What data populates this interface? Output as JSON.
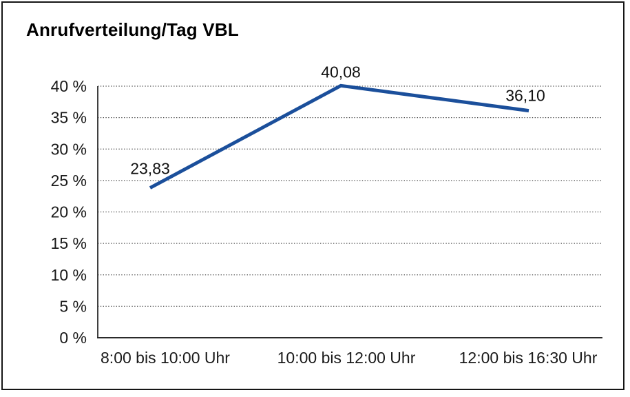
{
  "chart_data": {
    "type": "line",
    "title": "Anrufverteilung/Tag VBL",
    "categories": [
      "8:00 bis 10:00 Uhr",
      "10:00 bis 12:00 Uhr",
      "12:00 bis 16:30 Uhr"
    ],
    "values": [
      23.83,
      40.08,
      36.1
    ],
    "value_labels": [
      "23,83",
      "40,08",
      "36,10"
    ],
    "series_name": "Anrufverteilung/Tag VBL",
    "xlabel": "",
    "ylabel": "",
    "ylim": [
      0,
      40
    ],
    "ytick_step": 5,
    "ytick_labels": [
      "0 %",
      "5 %",
      "10 %",
      "15 %",
      "20 %",
      "25 %",
      "30 %",
      "35 %",
      "40 %"
    ],
    "grid": "horizontal-dotted",
    "legend": "none",
    "line_color": "#1b4f9b",
    "grid_color": "#555555",
    "axis_color": "#2a2a2a",
    "text_color": "#1a1a1a",
    "background_color": "#ffffff",
    "border_color": "#151515"
  }
}
